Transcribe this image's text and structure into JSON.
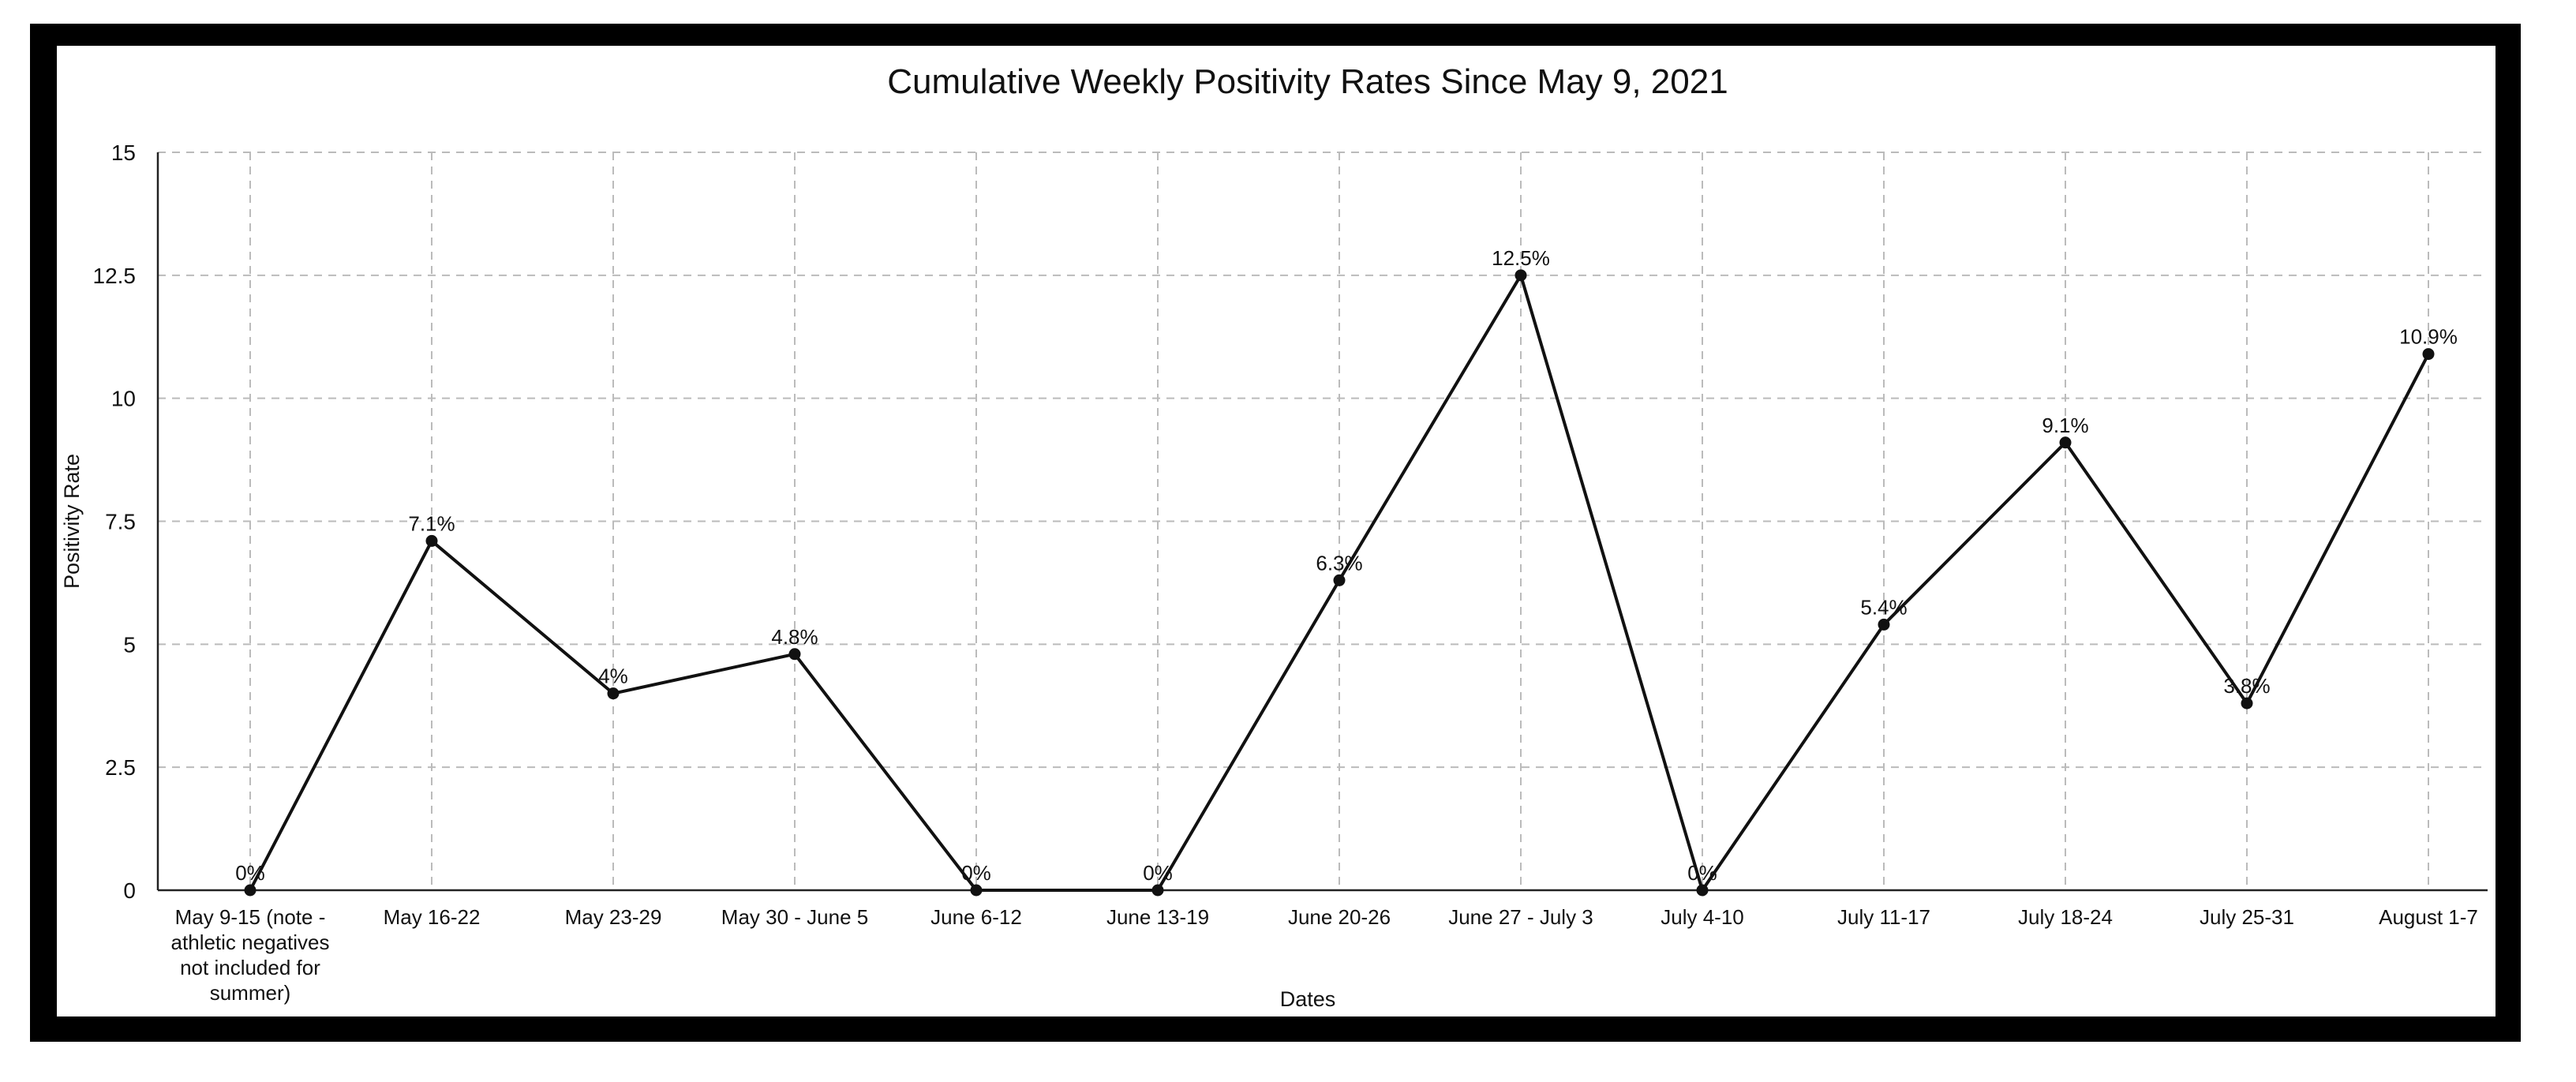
{
  "chart_data": {
    "type": "line",
    "title": "Cumulative Weekly Positivity Rates Since May 9, 2021",
    "xlabel": "Dates",
    "ylabel": "Positivity Rate",
    "ylim": [
      0,
      15
    ],
    "yticks": [
      "0",
      "2.5",
      "5",
      "7.5",
      "10",
      "12.5",
      "15"
    ],
    "grid": true,
    "categories": [
      [
        "May 9-15 (note -",
        "athletic negatives",
        "not included for",
        "summer)"
      ],
      [
        "May 16-22"
      ],
      [
        "May 23-29"
      ],
      [
        "May 30 - June 5"
      ],
      [
        "June 6-12"
      ],
      [
        "June 13-19"
      ],
      [
        "June 20-26"
      ],
      [
        "June 27 - July 3"
      ],
      [
        "July 4-10"
      ],
      [
        "July 11-17"
      ],
      [
        "July 18-24"
      ],
      [
        "July 25-31"
      ],
      [
        "August 1-7"
      ]
    ],
    "values": [
      0,
      7.1,
      4,
      4.8,
      0,
      0,
      6.3,
      12.5,
      0,
      5.4,
      9.1,
      3.8,
      10.9
    ],
    "data_labels": [
      "0%",
      "7.1%",
      "4%",
      "4.8%",
      "0%",
      "0%",
      "6.3%",
      "12.5%",
      "0%",
      "5.4%",
      "9.1%",
      "3.8%",
      "10.9%"
    ],
    "colors": {
      "line": "#111111",
      "grid": "#bbbbbb",
      "frame": "#000000"
    }
  }
}
